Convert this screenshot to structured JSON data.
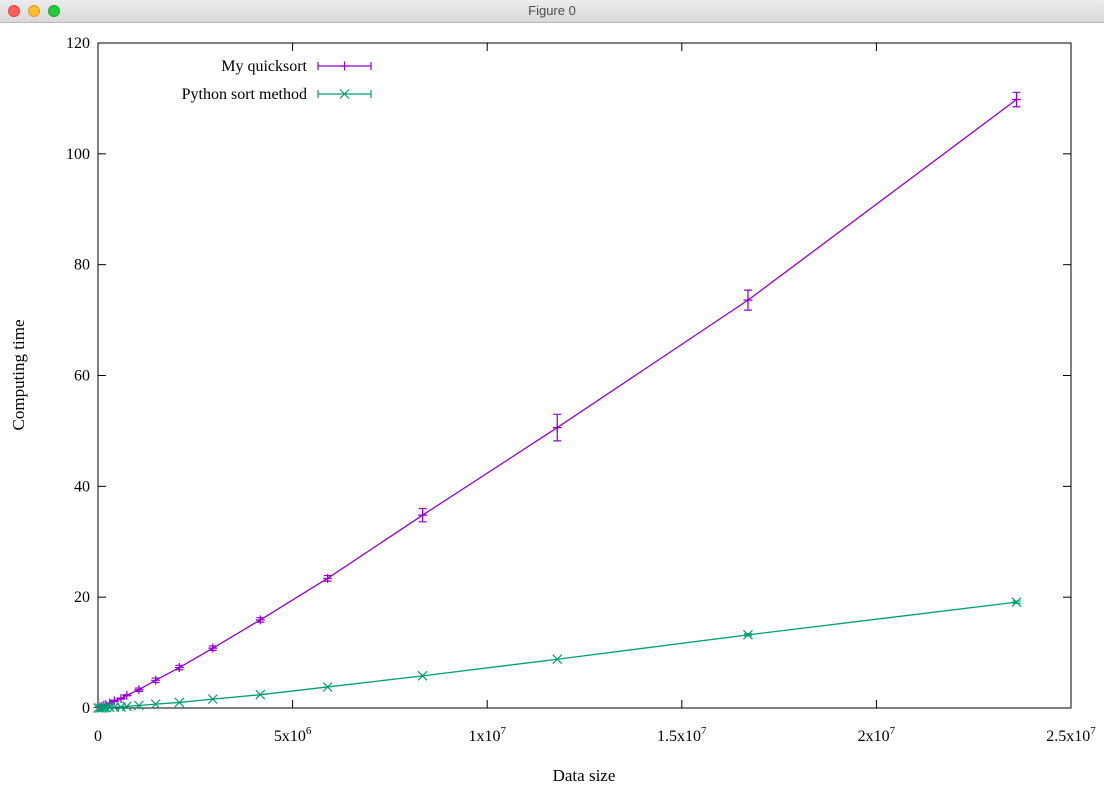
{
  "window": {
    "title": "Figure 0"
  },
  "chart_data": {
    "type": "line",
    "xlabel": "Data size",
    "ylabel": "Computing time",
    "xlim": [
      0,
      25000000
    ],
    "ylim": [
      0,
      120
    ],
    "x_ticks": [
      0,
      5000000,
      10000000,
      15000000,
      20000000,
      25000000
    ],
    "x_tick_labels": [
      {
        "base": "0",
        "exp": ""
      },
      {
        "base": "5x10",
        "exp": "6"
      },
      {
        "base": "1x10",
        "exp": "7"
      },
      {
        "base": "1.5x10",
        "exp": "7"
      },
      {
        "base": "2x10",
        "exp": "7"
      },
      {
        "base": "2.5x10",
        "exp": "7"
      }
    ],
    "y_ticks": [
      0,
      20,
      40,
      60,
      80,
      100,
      120
    ],
    "y_tick_labels": [
      "0",
      "20",
      "40",
      "60",
      "80",
      "100",
      "120"
    ],
    "legend_position": "top-left",
    "grid": false,
    "series": [
      {
        "name": "My quicksort",
        "color": "#9400d3",
        "marker": "plus",
        "x": [
          0,
          50000,
          100000,
          150000,
          200000,
          300000,
          420000,
          590000,
          740000,
          1050000,
          1480000,
          2090000,
          2950000,
          4170000,
          5900000,
          8340000,
          11800000,
          16700000,
          23600000
        ],
        "y": [
          0.1,
          0.2,
          0.3,
          0.5,
          0.6,
          0.9,
          1.3,
          1.7,
          2.3,
          3.3,
          5.0,
          7.3,
          10.8,
          15.9,
          23.4,
          34.8,
          50.6,
          73.6,
          109.8
        ],
        "err": [
          0,
          0,
          0,
          0,
          0,
          0,
          0.1,
          0.1,
          0.1,
          0.3,
          0.4,
          0.4,
          0.4,
          0.4,
          0.5,
          1.2,
          2.4,
          1.8,
          1.3
        ]
      },
      {
        "name": "Python sort method",
        "color": "#009e73",
        "marker": "cross",
        "x": [
          0,
          50000,
          100000,
          150000,
          200000,
          300000,
          420000,
          590000,
          740000,
          1050000,
          1480000,
          2090000,
          2950000,
          4170000,
          5900000,
          8340000,
          11800000,
          16700000,
          23600000
        ],
        "y": [
          0.0,
          0.0,
          0.0,
          0.05,
          0.05,
          0.1,
          0.15,
          0.2,
          0.3,
          0.45,
          0.7,
          1.0,
          1.6,
          2.4,
          3.8,
          5.8,
          8.8,
          13.2,
          19.1
        ],
        "err": [
          0,
          0,
          0,
          0,
          0,
          0,
          0,
          0,
          0,
          0,
          0,
          0,
          0,
          0,
          0,
          0,
          0,
          0.2,
          0.2
        ]
      }
    ]
  }
}
